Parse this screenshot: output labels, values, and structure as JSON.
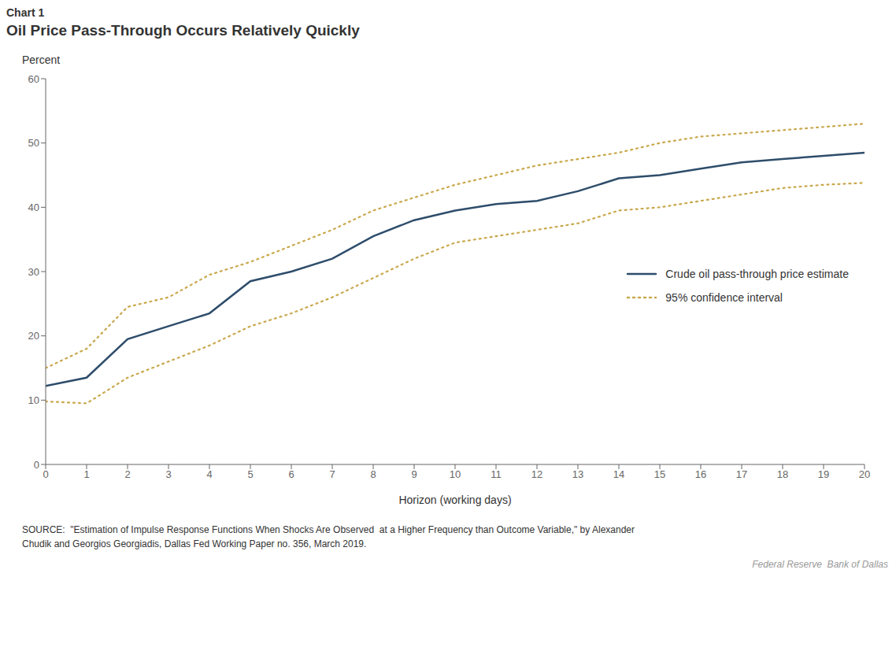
{
  "chart_data": {
    "type": "line",
    "title": "Chart 1",
    "subtitle": "Oil Price Pass-Through Occurs Relatively Quickly",
    "ylabel": "Percent",
    "xlabel": "Horizon (working days)",
    "x": [
      0,
      1,
      2,
      3,
      4,
      5,
      6,
      7,
      8,
      9,
      10,
      11,
      12,
      13,
      14,
      15,
      16,
      17,
      18,
      19,
      20
    ],
    "series": [
      {
        "name": "95% confidence interval",
        "color": "#C9A84C",
        "line_style": "dotted",
        "values": [
          15.0,
          18.0,
          24.5,
          26.0,
          29.5,
          31.5,
          34.0,
          36.5,
          39.5,
          41.5,
          43.5,
          45.0,
          46.5,
          47.5,
          48.5,
          50.0,
          51.0,
          51.5,
          52.0,
          52.5,
          53.0
        ]
      },
      {
        "name": "95% confidence interval",
        "color": "#C9A84C",
        "line_style": "dotted",
        "values": [
          9.8,
          9.5,
          13.5,
          16.0,
          18.5,
          21.5,
          23.5,
          26.0,
          29.0,
          32.0,
          34.5,
          35.5,
          36.5,
          37.5,
          39.5,
          40.0,
          41.0,
          42.0,
          43.0,
          43.5,
          43.8
        ]
      },
      {
        "name": "Crude oil pass-through price estimate",
        "color": "#2E4D6B",
        "line_style": "solid",
        "values": [
          12.2,
          13.5,
          19.5,
          21.5,
          23.5,
          28.5,
          30.0,
          32.0,
          35.5,
          38.0,
          39.5,
          40.5,
          41.0,
          42.5,
          44.5,
          45.0,
          46.0,
          47.0,
          47.5,
          48.0,
          48.5
        ]
      }
    ],
    "xlim": [
      0,
      20
    ],
    "xticks": [
      0,
      1,
      2,
      3,
      4,
      5,
      6,
      7,
      8,
      9,
      10,
      11,
      12,
      13,
      14,
      15,
      16,
      17,
      18,
      19,
      20
    ],
    "ylim": [
      0,
      60
    ],
    "yticks": [
      0,
      10,
      20,
      30,
      40,
      50,
      60
    ],
    "grid": false,
    "legend": "right",
    "annotations": [
      "SOURCE:  \"Estimation of Impulse Response Functions When Shocks Are Observed  at a Higher Frequency than Outcome Variable,\" by Alexander\nChudik and Georgios Georgiadis, Dallas Fed Working Paper no. 356, March 2019.",
      "Federal Reserve  Bank of Dallas"
    ]
  }
}
